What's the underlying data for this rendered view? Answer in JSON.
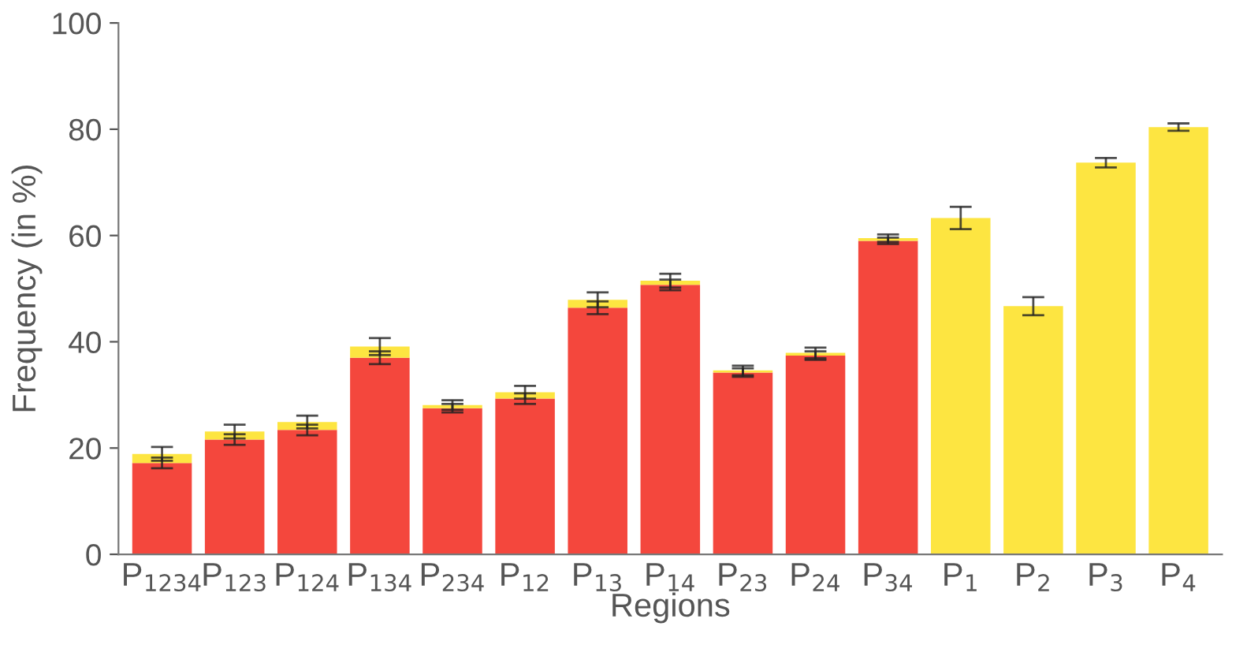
{
  "chart_data": {
    "type": "bar",
    "stacked": true,
    "xlabel": "Regions",
    "ylabel": "Frequency (in %)",
    "categories": [
      "P$_{1234}$",
      "P$_{123}$",
      "P$_{124}$",
      "P$_{134}$",
      "P$_{234}$",
      "P$_{12}$",
      "P$_{13}$",
      "P$_{14}$",
      "P$_{23}$",
      "P$_{24}$",
      "P$_{34}$",
      "P$_{1}$",
      "P$_{2}$",
      "P$_{3}$",
      "P$_{4}$"
    ],
    "series": [
      {
        "color": "#f4473d",
        "values": [
          17.2,
          21.6,
          23.4,
          37.0,
          27.5,
          29.3,
          46.4,
          50.7,
          34.2,
          37.4,
          59.0,
          0,
          0,
          0,
          0
        ],
        "errors": [
          1.0,
          1.0,
          1.0,
          1.2,
          0.8,
          1.0,
          1.2,
          1.0,
          0.8,
          0.8,
          0.6,
          null,
          null,
          null,
          null
        ]
      },
      {
        "color": "#fde541",
        "values": [
          1.7,
          1.5,
          1.5,
          2.1,
          0.6,
          1.2,
          1.5,
          0.8,
          0.4,
          0.5,
          0.5,
          63.3,
          46.7,
          73.7,
          80.4
        ],
        "errors": [
          1.3,
          1.3,
          1.2,
          1.6,
          0.9,
          1.2,
          1.4,
          1.3,
          0.9,
          1.0,
          0.7,
          2.1,
          1.7,
          0.9,
          0.7
        ]
      }
    ],
    "ylim": [
      0,
      100
    ],
    "yticks": [
      0,
      20,
      40,
      60,
      80,
      100
    ],
    "grid": false,
    "legend": false
  }
}
